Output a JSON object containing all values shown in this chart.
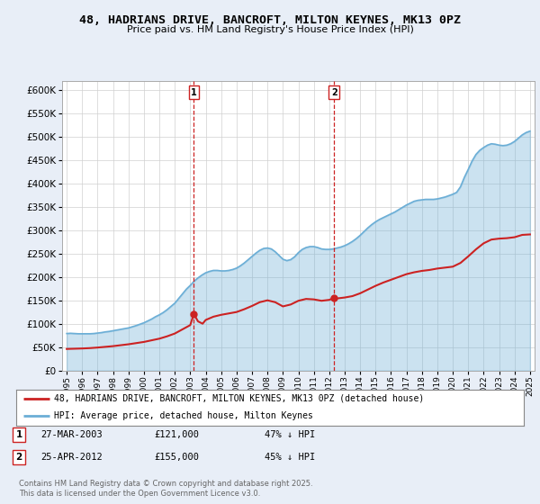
{
  "title": "48, HADRIANS DRIVE, BANCROFT, MILTON KEYNES, MK13 0PZ",
  "subtitle": "Price paid vs. HM Land Registry's House Price Index (HPI)",
  "hpi_label": "HPI: Average price, detached house, Milton Keynes",
  "property_label": "48, HADRIANS DRIVE, BANCROFT, MILTON KEYNES, MK13 0PZ (detached house)",
  "hpi_color": "#6baed6",
  "property_color": "#cc2222",
  "marker_color": "#cc2222",
  "bg_color": "#e8eef7",
  "plot_bg": "#ffffff",
  "ylim": [
    0,
    620000
  ],
  "yticks": [
    0,
    50000,
    100000,
    150000,
    200000,
    250000,
    300000,
    350000,
    400000,
    450000,
    500000,
    550000,
    600000
  ],
  "xlim_start": 1994.7,
  "xlim_end": 2025.3,
  "transaction1": {
    "label": "1",
    "date": "27-MAR-2003",
    "price": 121000,
    "pct": "47% ↓ HPI",
    "year": 2003.23,
    "marker_y": 121000
  },
  "transaction2": {
    "label": "2",
    "date": "25-APR-2012",
    "price": 155000,
    "pct": "45% ↓ HPI",
    "year": 2012.32,
    "marker_y": 155000
  },
  "footer": "Contains HM Land Registry data © Crown copyright and database right 2025.\nThis data is licensed under the Open Government Licence v3.0.",
  "hpi_data": [
    [
      1995.0,
      79000
    ],
    [
      1995.25,
      79500
    ],
    [
      1995.5,
      79000
    ],
    [
      1995.75,
      78500
    ],
    [
      1996.0,
      78500
    ],
    [
      1996.25,
      78500
    ],
    [
      1996.5,
      78500
    ],
    [
      1996.75,
      79000
    ],
    [
      1997.0,
      80000
    ],
    [
      1997.25,
      81000
    ],
    [
      1997.5,
      82500
    ],
    [
      1997.75,
      83500
    ],
    [
      1998.0,
      85000
    ],
    [
      1998.25,
      86500
    ],
    [
      1998.5,
      88000
    ],
    [
      1998.75,
      89500
    ],
    [
      1999.0,
      91000
    ],
    [
      1999.25,
      93500
    ],
    [
      1999.5,
      96000
    ],
    [
      1999.75,
      99000
    ],
    [
      2000.0,
      102000
    ],
    [
      2000.25,
      106000
    ],
    [
      2000.5,
      110000
    ],
    [
      2000.75,
      115000
    ],
    [
      2001.0,
      119000
    ],
    [
      2001.25,
      124000
    ],
    [
      2001.5,
      130000
    ],
    [
      2001.75,
      137000
    ],
    [
      2002.0,
      144000
    ],
    [
      2002.25,
      154000
    ],
    [
      2002.5,
      164000
    ],
    [
      2002.75,
      174000
    ],
    [
      2003.0,
      182000
    ],
    [
      2003.25,
      191000
    ],
    [
      2003.5,
      198000
    ],
    [
      2003.75,
      204000
    ],
    [
      2004.0,
      209000
    ],
    [
      2004.25,
      212000
    ],
    [
      2004.5,
      214000
    ],
    [
      2004.75,
      214000
    ],
    [
      2005.0,
      213000
    ],
    [
      2005.25,
      213000
    ],
    [
      2005.5,
      214000
    ],
    [
      2005.75,
      216000
    ],
    [
      2006.0,
      219000
    ],
    [
      2006.25,
      224000
    ],
    [
      2006.5,
      230000
    ],
    [
      2006.75,
      237000
    ],
    [
      2007.0,
      244000
    ],
    [
      2007.25,
      251000
    ],
    [
      2007.5,
      257000
    ],
    [
      2007.75,
      261000
    ],
    [
      2008.0,
      262000
    ],
    [
      2008.25,
      260000
    ],
    [
      2008.5,
      254000
    ],
    [
      2008.75,
      246000
    ],
    [
      2009.0,
      238000
    ],
    [
      2009.25,
      235000
    ],
    [
      2009.5,
      237000
    ],
    [
      2009.75,
      243000
    ],
    [
      2010.0,
      252000
    ],
    [
      2010.25,
      259000
    ],
    [
      2010.5,
      263000
    ],
    [
      2010.75,
      265000
    ],
    [
      2011.0,
      265000
    ],
    [
      2011.25,
      263000
    ],
    [
      2011.5,
      260000
    ],
    [
      2011.75,
      259000
    ],
    [
      2012.0,
      259000
    ],
    [
      2012.25,
      260000
    ],
    [
      2012.5,
      262000
    ],
    [
      2012.75,
      264000
    ],
    [
      2013.0,
      267000
    ],
    [
      2013.25,
      271000
    ],
    [
      2013.5,
      276000
    ],
    [
      2013.75,
      282000
    ],
    [
      2014.0,
      289000
    ],
    [
      2014.25,
      297000
    ],
    [
      2014.5,
      305000
    ],
    [
      2014.75,
      312000
    ],
    [
      2015.0,
      318000
    ],
    [
      2015.25,
      323000
    ],
    [
      2015.5,
      327000
    ],
    [
      2015.75,
      331000
    ],
    [
      2016.0,
      335000
    ],
    [
      2016.25,
      339000
    ],
    [
      2016.5,
      344000
    ],
    [
      2016.75,
      349000
    ],
    [
      2017.0,
      354000
    ],
    [
      2017.25,
      358000
    ],
    [
      2017.5,
      362000
    ],
    [
      2017.75,
      364000
    ],
    [
      2018.0,
      365000
    ],
    [
      2018.25,
      366000
    ],
    [
      2018.5,
      366000
    ],
    [
      2018.75,
      366000
    ],
    [
      2019.0,
      367000
    ],
    [
      2019.25,
      369000
    ],
    [
      2019.5,
      371000
    ],
    [
      2019.75,
      374000
    ],
    [
      2020.0,
      377000
    ],
    [
      2020.25,
      381000
    ],
    [
      2020.5,
      393000
    ],
    [
      2020.75,
      413000
    ],
    [
      2021.0,
      430000
    ],
    [
      2021.25,
      448000
    ],
    [
      2021.5,
      462000
    ],
    [
      2021.75,
      471000
    ],
    [
      2022.0,
      477000
    ],
    [
      2022.25,
      482000
    ],
    [
      2022.5,
      485000
    ],
    [
      2022.75,
      484000
    ],
    [
      2023.0,
      482000
    ],
    [
      2023.25,
      481000
    ],
    [
      2023.5,
      482000
    ],
    [
      2023.75,
      485000
    ],
    [
      2024.0,
      490000
    ],
    [
      2024.25,
      497000
    ],
    [
      2024.5,
      504000
    ],
    [
      2024.75,
      509000
    ],
    [
      2025.0,
      512000
    ]
  ],
  "property_data": [
    [
      1995.0,
      46000
    ],
    [
      1995.5,
      46500
    ],
    [
      1996.0,
      47000
    ],
    [
      1996.5,
      47800
    ],
    [
      1997.0,
      49000
    ],
    [
      1997.5,
      50500
    ],
    [
      1998.0,
      52000
    ],
    [
      1998.5,
      54000
    ],
    [
      1999.0,
      56000
    ],
    [
      1999.5,
      58500
    ],
    [
      2000.0,
      61000
    ],
    [
      2000.5,
      64500
    ],
    [
      2001.0,
      68000
    ],
    [
      2001.5,
      73000
    ],
    [
      2002.0,
      79000
    ],
    [
      2002.5,
      88000
    ],
    [
      2003.0,
      97000
    ],
    [
      2003.23,
      121000
    ],
    [
      2003.5,
      105000
    ],
    [
      2003.8,
      100000
    ],
    [
      2004.0,
      108000
    ],
    [
      2004.5,
      115000
    ],
    [
      2005.0,
      119000
    ],
    [
      2005.5,
      122000
    ],
    [
      2006.0,
      125000
    ],
    [
      2006.5,
      131000
    ],
    [
      2007.0,
      138000
    ],
    [
      2007.5,
      146000
    ],
    [
      2008.0,
      150000
    ],
    [
      2008.5,
      146000
    ],
    [
      2009.0,
      137000
    ],
    [
      2009.5,
      141000
    ],
    [
      2010.0,
      149000
    ],
    [
      2010.5,
      153000
    ],
    [
      2011.0,
      152000
    ],
    [
      2011.5,
      149000
    ],
    [
      2012.0,
      151000
    ],
    [
      2012.32,
      155000
    ],
    [
      2012.5,
      154000
    ],
    [
      2013.0,
      156000
    ],
    [
      2013.5,
      159000
    ],
    [
      2014.0,
      165000
    ],
    [
      2014.5,
      173000
    ],
    [
      2015.0,
      181000
    ],
    [
      2015.5,
      188000
    ],
    [
      2016.0,
      194000
    ],
    [
      2016.5,
      200000
    ],
    [
      2017.0,
      206000
    ],
    [
      2017.5,
      210000
    ],
    [
      2018.0,
      213000
    ],
    [
      2018.5,
      215000
    ],
    [
      2019.0,
      218000
    ],
    [
      2019.5,
      220000
    ],
    [
      2020.0,
      222000
    ],
    [
      2020.5,
      230000
    ],
    [
      2021.0,
      244000
    ],
    [
      2021.5,
      259000
    ],
    [
      2022.0,
      272000
    ],
    [
      2022.5,
      280000
    ],
    [
      2023.0,
      282000
    ],
    [
      2023.5,
      283000
    ],
    [
      2024.0,
      285000
    ],
    [
      2024.5,
      290000
    ],
    [
      2025.0,
      291000
    ]
  ]
}
